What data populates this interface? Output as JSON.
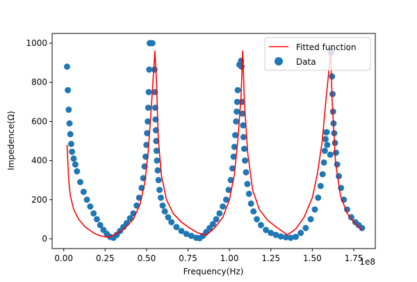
{
  "chart_data": {
    "type": "scatter",
    "xlabel": "Frequency(Hz)",
    "ylabel": "Impedence(Ω)",
    "x_offset_label": "1e8",
    "x_scale": 100000000,
    "xlim": [
      -7000000,
      188000000
    ],
    "ylim": [
      -50,
      1050
    ],
    "xticks": [
      0,
      25000000,
      50000000,
      75000000,
      100000000,
      125000000,
      150000000,
      175000000
    ],
    "xtick_labels": [
      "0.00",
      "0.25",
      "0.50",
      "0.75",
      "1.00",
      "1.25",
      "1.50",
      "1.75"
    ],
    "yticks": [
      0,
      200,
      400,
      600,
      800,
      1000
    ],
    "ytick_labels": [
      "0",
      "200",
      "400",
      "600",
      "800",
      "1000"
    ],
    "legend_position": "top-right",
    "series": [
      {
        "name": "Fitted function",
        "kind": "line",
        "color": "#ff0000",
        "x": [
          2000000,
          3000000,
          4000000,
          6000000,
          9000000,
          13000000,
          18000000,
          22000000,
          27000000,
          32000000,
          37000000,
          42000000,
          46000000,
          49000000,
          51000000,
          53000000,
          55000000,
          56000000,
          57000000,
          59000000,
          62000000,
          66000000,
          71000000,
          76000000,
          81000000,
          86000000,
          91000000,
          96000000,
          100000000,
          103000000,
          105000000,
          107000000,
          108000000,
          109000000,
          111000000,
          114000000,
          118000000,
          123000000,
          129000000,
          135000000,
          140000000,
          145000000,
          150000000,
          153000000,
          156000000,
          158000000,
          160000000,
          161000000,
          162000000,
          164000000,
          167000000,
          171000000,
          175000000,
          180000000
        ],
        "y": [
          480,
          300,
          220,
          150,
          100,
          60,
          30,
          15,
          8,
          25,
          55,
          100,
          175,
          290,
          450,
          690,
          960,
          800,
          520,
          320,
          200,
          130,
          85,
          55,
          30,
          18,
          55,
          110,
          200,
          330,
          500,
          730,
          960,
          700,
          440,
          250,
          150,
          95,
          55,
          20,
          50,
          110,
          210,
          330,
          500,
          690,
          860,
          960,
          700,
          390,
          220,
          130,
          85,
          45
        ]
      },
      {
        "name": "Data",
        "kind": "scatter",
        "color": "#1f77b4",
        "x": [
          2000000,
          2500000,
          3000000,
          3500000,
          4000000,
          4500000,
          5000000,
          6000000,
          7000000,
          8000000,
          10000000,
          12000000,
          14000000,
          16000000,
          18000000,
          20000000,
          22000000,
          24000000,
          26000000,
          28000000,
          30000000,
          32000000,
          34000000,
          36000000,
          38000000,
          40000000,
          42000000,
          44000000,
          45500000,
          47000000,
          48000000,
          48800000,
          49400000,
          49900000,
          50300000,
          50700000,
          51000000,
          51300000,
          51600000,
          51900000,
          52200000,
          53500000,
          54800000,
          55000000,
          55200000,
          55400000,
          55600000,
          55800000,
          56000000,
          56300000,
          56700000,
          57200000,
          57800000,
          58600000,
          59700000,
          61000000,
          63000000,
          65000000,
          68000000,
          71000000,
          74000000,
          77000000,
          80000000,
          82000000,
          84000000,
          86000000,
          88000000,
          90000000,
          92000000,
          94000000,
          96000000,
          98000000,
          99500000,
          100800000,
          101800000,
          102500000,
          103000000,
          103500000,
          104000000,
          104400000,
          104700000,
          105000000,
          106000000,
          106500000,
          107000000,
          107300000,
          107600000,
          107900000,
          108200000,
          108500000,
          108900000,
          109400000,
          110000000,
          110800000,
          111800000,
          113000000,
          114500000,
          116500000,
          119000000,
          122000000,
          125000000,
          128000000,
          131000000,
          134000000,
          137000000,
          140000000,
          143000000,
          146000000,
          149000000,
          151500000,
          153500000,
          155000000,
          156200000,
          157000000,
          157500000,
          158000000,
          158400000,
          158700000,
          159000000,
          160800000,
          161200000,
          161600000,
          161900000,
          162200000,
          162500000,
          162800000,
          163200000,
          163700000,
          164300000,
          165000000,
          166000000,
          167300000,
          169000000,
          171000000,
          173500000,
          176000000,
          178000000,
          180000000
        ],
        "y": [
          880,
          760,
          660,
          590,
          535,
          485,
          445,
          410,
          380,
          345,
          290,
          240,
          200,
          165,
          130,
          100,
          70,
          45,
          25,
          10,
          5,
          20,
          40,
          60,
          80,
          105,
          130,
          170,
          210,
          260,
          310,
          370,
          420,
          480,
          540,
          600,
          670,
          750,
          865,
          1000,
          1000,
          1000,
          865,
          750,
          670,
          610,
          555,
          500,
          450,
          400,
          350,
          300,
          250,
          210,
          170,
          140,
          110,
          85,
          60,
          40,
          25,
          15,
          5,
          3,
          15,
          35,
          55,
          75,
          100,
          130,
          165,
          200,
          250,
          300,
          360,
          420,
          470,
          530,
          600,
          650,
          700,
          760,
          890,
          890,
          910,
          880,
          700,
          640,
          580,
          520,
          460,
          400,
          340,
          280,
          230,
          180,
          140,
          100,
          70,
          45,
          30,
          20,
          12,
          8,
          5,
          10,
          30,
          55,
          100,
          150,
          210,
          270,
          330,
          390,
          450,
          510,
          545,
          545,
          480,
          430,
          950,
          960,
          830,
          740,
          650,
          590,
          540,
          490,
          440,
          380,
          320,
          260,
          200,
          150,
          110,
          85,
          70,
          55
        ]
      }
    ]
  }
}
